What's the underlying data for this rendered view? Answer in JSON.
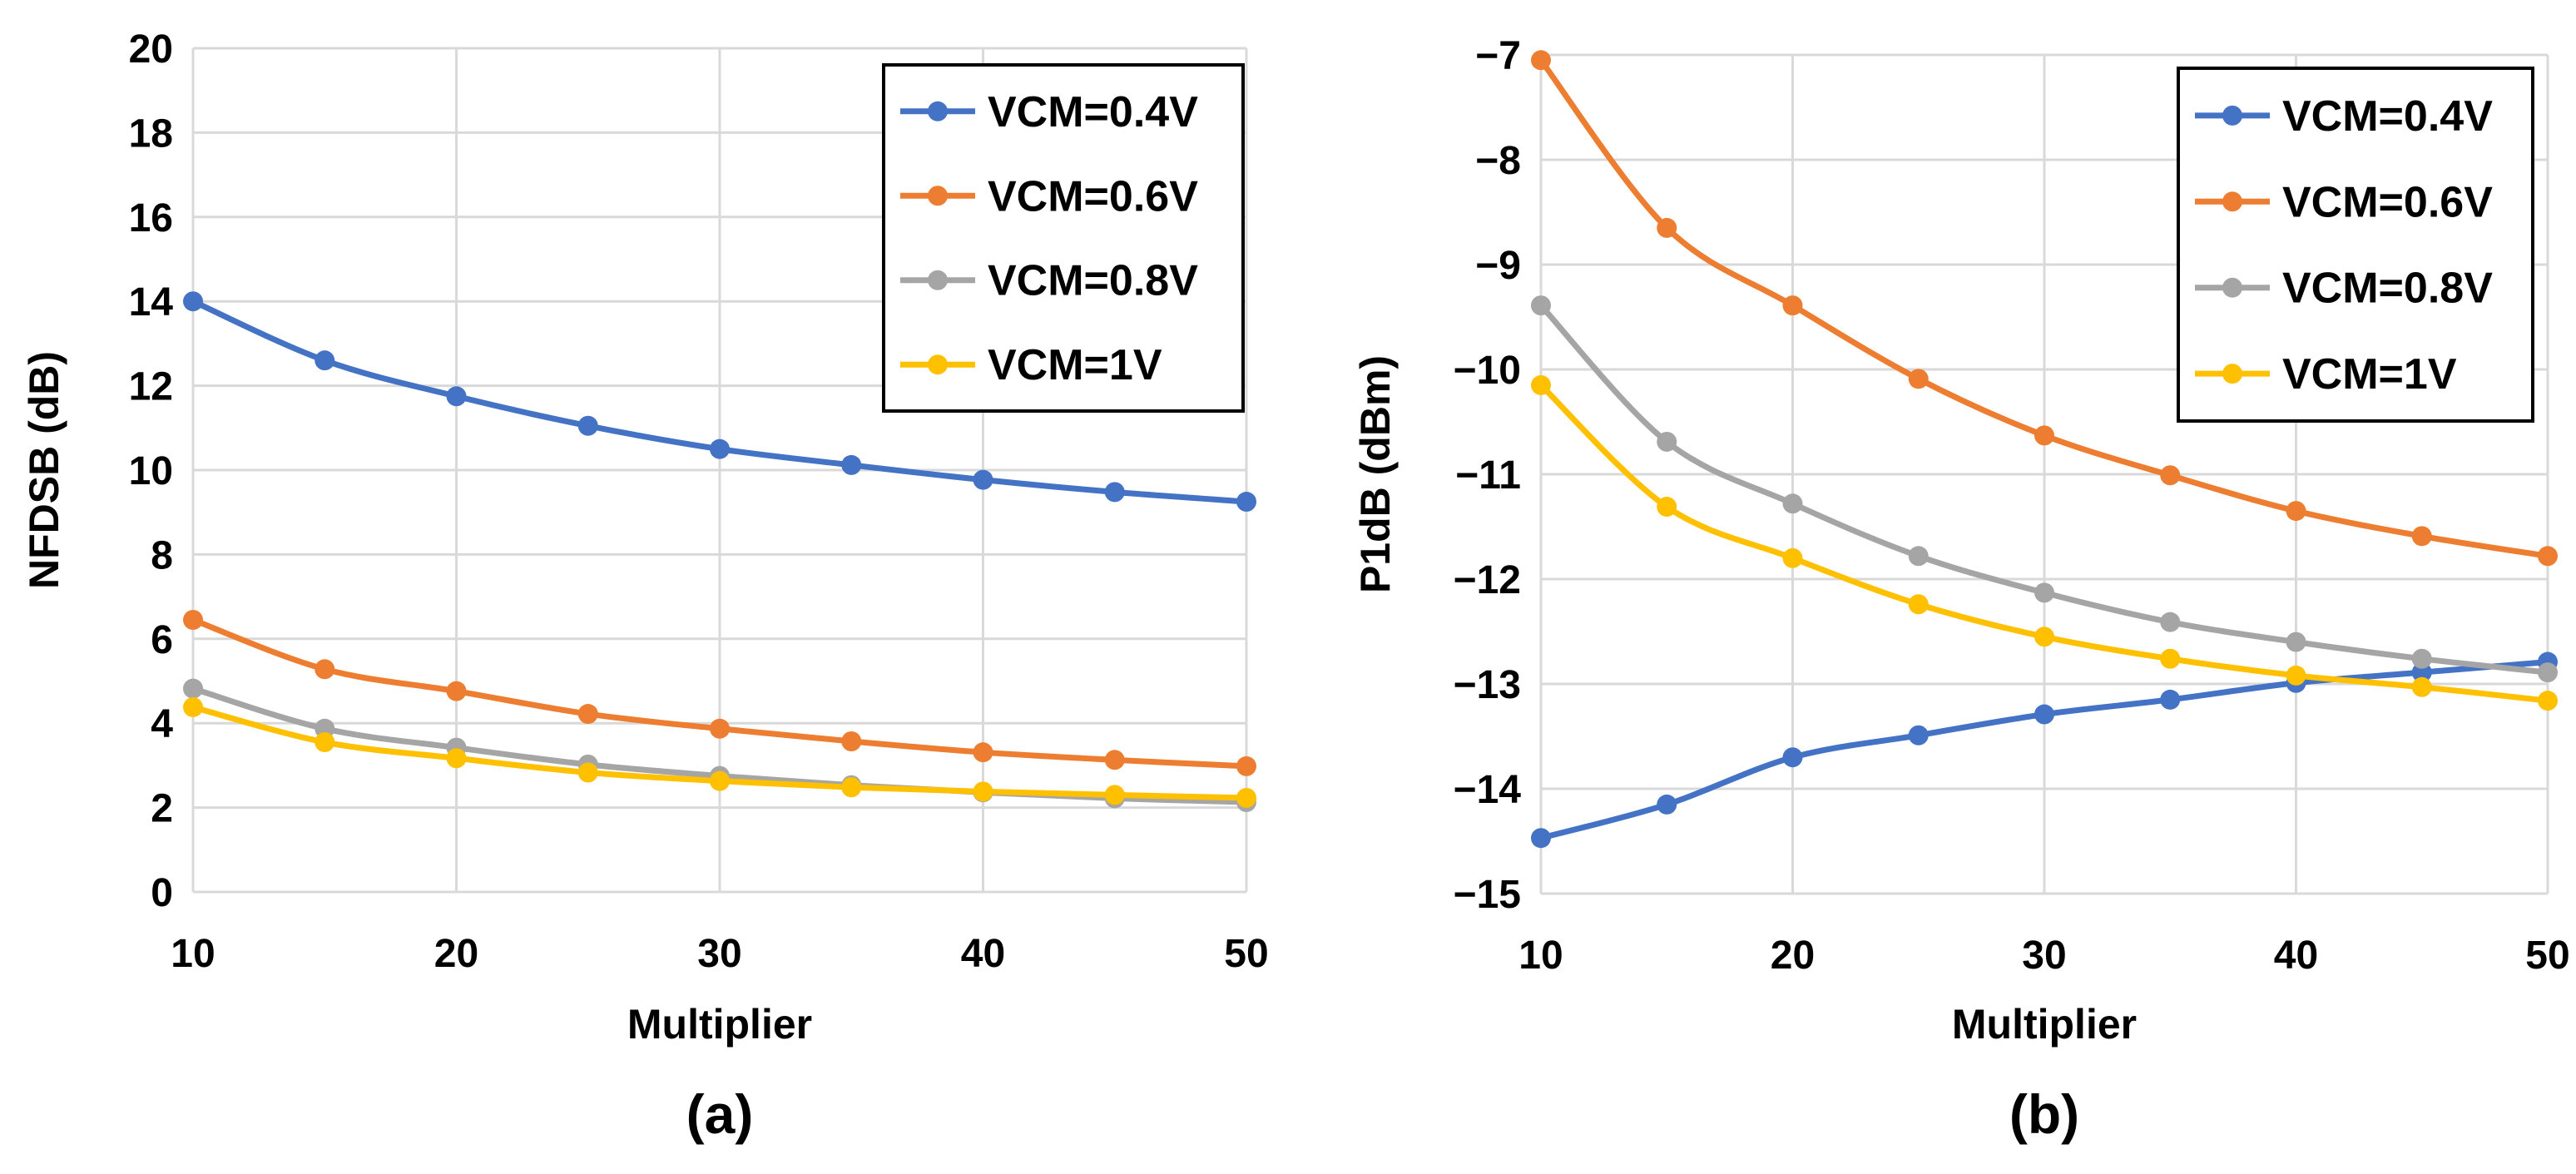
{
  "chart_data": [
    {
      "type": "line",
      "title": "",
      "panel_label": "(a)",
      "xlabel": "Multiplier",
      "ylabel": "NFDSB (dB)",
      "xlim": [
        10,
        50
      ],
      "ylim": [
        0,
        20
      ],
      "x_ticks": [
        10,
        20,
        30,
        40,
        50
      ],
      "x_tick_labels": [
        "10",
        "20",
        "30",
        "40",
        "50"
      ],
      "y_ticks": [
        0,
        2,
        4,
        6,
        8,
        10,
        12,
        14,
        16,
        18,
        20
      ],
      "y_tick_labels": [
        "0",
        "2",
        "4",
        "6",
        "8",
        "10",
        "12",
        "14",
        "16",
        "18",
        "20"
      ],
      "grid": true,
      "legend_position": "top-right",
      "x": [
        10,
        15,
        20,
        25,
        30,
        35,
        40,
        45,
        50
      ],
      "series": [
        {
          "name": "VCM=0.4V",
          "color": "#4472C4",
          "values": [
            14.0,
            12.6,
            11.75,
            11.05,
            10.5,
            10.12,
            9.77,
            9.48,
            9.25
          ]
        },
        {
          "name": "VCM=0.6V",
          "color": "#ED7D31",
          "values": [
            6.45,
            5.28,
            4.76,
            4.22,
            3.87,
            3.57,
            3.31,
            3.13,
            2.98
          ]
        },
        {
          "name": "VCM=0.8V",
          "color": "#A5A5A5",
          "values": [
            4.82,
            3.87,
            3.42,
            3.02,
            2.75,
            2.53,
            2.36,
            2.22,
            2.13
          ]
        },
        {
          "name": "VCM=1V",
          "color": "#FFC000",
          "values": [
            4.38,
            3.55,
            3.17,
            2.83,
            2.63,
            2.48,
            2.38,
            2.3,
            2.23
          ]
        }
      ]
    },
    {
      "type": "line",
      "title": "",
      "panel_label": "(b)",
      "xlabel": "Multiplier",
      "ylabel": "P1dB (dBm)",
      "xlim": [
        10,
        50
      ],
      "ylim": [
        -15,
        -7
      ],
      "x_ticks": [
        10,
        20,
        30,
        40,
        50
      ],
      "x_tick_labels": [
        "10",
        "20",
        "30",
        "40",
        "50"
      ],
      "y_ticks": [
        -15,
        -14,
        -13,
        -12,
        -11,
        -10,
        -9,
        -8,
        -7
      ],
      "y_tick_labels": [
        "−15",
        "−14",
        "−13",
        "−12",
        "−11",
        "−10",
        "−9",
        "−8",
        "−7"
      ],
      "grid": true,
      "legend_position": "top-right",
      "x": [
        10,
        15,
        20,
        25,
        30,
        35,
        40,
        45,
        50
      ],
      "series": [
        {
          "name": "VCM=0.4V",
          "color": "#4472C4",
          "values": [
            -14.47,
            -14.15,
            -13.7,
            -13.49,
            -13.29,
            -13.15,
            -12.99,
            -12.89,
            -12.79
          ]
        },
        {
          "name": "VCM=0.6V",
          "color": "#ED7D31",
          "values": [
            -7.05,
            -8.65,
            -9.39,
            -10.09,
            -10.63,
            -11.01,
            -11.35,
            -11.59,
            -11.78
          ]
        },
        {
          "name": "VCM=0.8V",
          "color": "#A5A5A5",
          "values": [
            -9.39,
            -10.69,
            -11.28,
            -11.78,
            -12.13,
            -12.41,
            -12.6,
            -12.76,
            -12.89
          ]
        },
        {
          "name": "VCM=1V",
          "color": "#FFC000",
          "values": [
            -10.15,
            -11.31,
            -11.8,
            -12.24,
            -12.55,
            -12.76,
            -12.92,
            -13.03,
            -13.16
          ]
        }
      ]
    }
  ]
}
